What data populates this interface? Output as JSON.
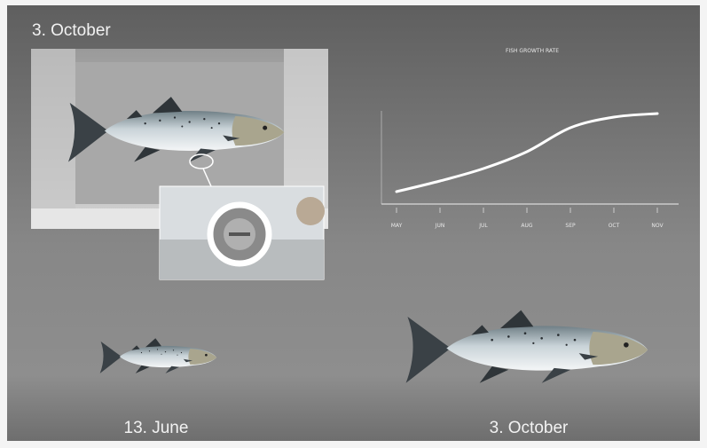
{
  "header": {
    "date": "3. October"
  },
  "fish": [
    {
      "label": "13. June"
    },
    {
      "label": "3. October"
    }
  ],
  "chart_data": {
    "type": "line",
    "title": "FISH GROWTH RATE",
    "categories": [
      "MAY",
      "JUN",
      "JUL",
      "AUG",
      "SEP",
      "OCT",
      "NOV"
    ],
    "values": [
      1.4,
      2.6,
      4.0,
      5.9,
      8.6,
      9.8,
      10.2
    ],
    "color": "#ffffff",
    "ylim": [
      0,
      10.5
    ]
  }
}
